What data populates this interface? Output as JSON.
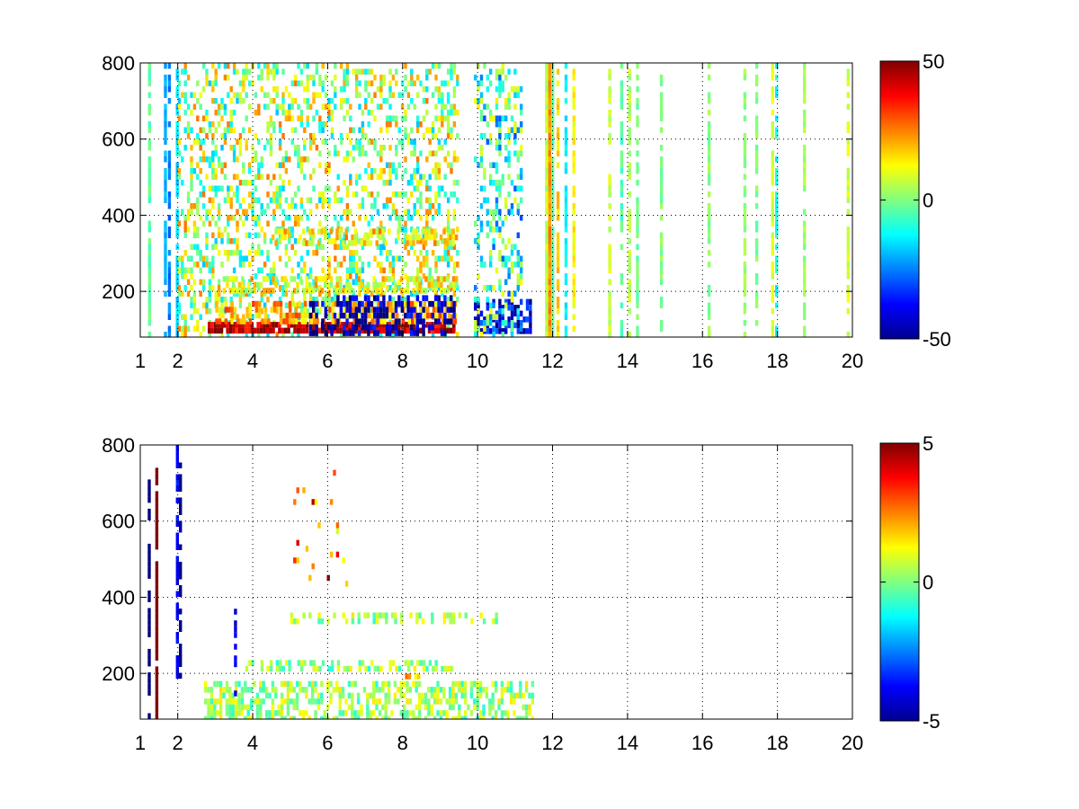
{
  "chart_data": [
    {
      "type": "heatmap",
      "title": "",
      "xlabel": "",
      "ylabel": "",
      "xlim": [
        1,
        20
      ],
      "ylim": [
        80,
        800
      ],
      "x_ticks": [
        1,
        2,
        4,
        6,
        8,
        10,
        12,
        14,
        16,
        18,
        20
      ],
      "x_tick_labels": [
        "1",
        "2",
        "4",
        "6",
        "8",
        "10",
        "12",
        "14",
        "16",
        "18",
        "20"
      ],
      "y_ticks": [
        200,
        400,
        600,
        800
      ],
      "y_tick_labels": [
        "200",
        "400",
        "600",
        "800"
      ],
      "grid": "dotted",
      "colormap": "jet",
      "clim": [
        -50,
        50
      ],
      "colorbar_ticks": [
        50,
        0,
        -50
      ],
      "colorbar_tick_labels": [
        "50",
        "0",
        "-50"
      ],
      "colorbar_position": "right",
      "features": [
        {
          "x_from": 1.1,
          "x_to": 1.95,
          "y_from": 80,
          "y_to": 800,
          "value": -12,
          "kind": "vertical-streaks",
          "density": 0.45
        },
        {
          "x_from": 2,
          "x_to": 9.5,
          "y_from": 80,
          "y_to": 800,
          "value": 4,
          "kind": "speckle",
          "density": 0.35
        },
        {
          "x_from": 2.8,
          "x_to": 9.4,
          "y_from": 90,
          "y_to": 120,
          "value": 45,
          "kind": "band",
          "density": 0.85
        },
        {
          "x_from": 3.0,
          "x_to": 9.4,
          "y_from": 120,
          "y_to": 175,
          "value": 20,
          "kind": "band",
          "density": 0.6
        },
        {
          "x_from": 5.5,
          "x_to": 9.4,
          "y_from": 90,
          "y_to": 190,
          "value": -45,
          "kind": "band",
          "density": 0.45
        },
        {
          "x_from": 3.2,
          "x_to": 9.4,
          "y_from": 200,
          "y_to": 240,
          "value": 12,
          "kind": "band",
          "density": 0.55
        },
        {
          "x_from": 4.5,
          "x_to": 9.4,
          "y_from": 330,
          "y_to": 365,
          "value": 15,
          "kind": "band",
          "density": 0.5
        },
        {
          "x_from": 9.9,
          "x_to": 11.4,
          "y_from": 90,
          "y_to": 180,
          "value": -40,
          "kind": "band",
          "density": 0.7
        },
        {
          "x_from": 9.9,
          "x_to": 11.2,
          "y_from": 80,
          "y_to": 800,
          "value": -8,
          "kind": "speckle",
          "density": 0.35
        },
        {
          "x_from": 11.8,
          "x_to": 12.0,
          "y_from": 80,
          "y_to": 800,
          "value": 10,
          "kind": "column",
          "density": 0.95
        },
        {
          "x_from": 12,
          "x_to": 20,
          "y_from": 80,
          "y_to": 800,
          "value": 0,
          "kind": "sparse-columns",
          "density": 0.25
        }
      ]
    },
    {
      "type": "heatmap",
      "title": "",
      "xlabel": "",
      "ylabel": "",
      "xlim": [
        1,
        20
      ],
      "ylim": [
        80,
        800
      ],
      "x_ticks": [
        1,
        2,
        4,
        6,
        8,
        10,
        12,
        14,
        16,
        18,
        20
      ],
      "x_tick_labels": [
        "1",
        "2",
        "4",
        "6",
        "8",
        "10",
        "12",
        "14",
        "16",
        "18",
        "20"
      ],
      "y_ticks": [
        200,
        400,
        600,
        800
      ],
      "y_tick_labels": [
        "200",
        "400",
        "600",
        "800"
      ],
      "grid": "dotted",
      "colormap": "jet",
      "clim": [
        -5,
        5
      ],
      "colorbar_ticks": [
        5,
        0,
        -5
      ],
      "colorbar_tick_labels": [
        "5",
        "0",
        "-5"
      ],
      "colorbar_position": "right",
      "features": [
        {
          "x_from": 1.2,
          "x_to": 1.25,
          "y_from": 80,
          "y_to": 740,
          "value": -4.5,
          "kind": "column",
          "density": 0.5
        },
        {
          "x_from": 1.4,
          "x_to": 1.45,
          "y_from": 80,
          "y_to": 740,
          "value": 4.8,
          "kind": "column",
          "density": 0.9
        },
        {
          "x_from": 1.95,
          "x_to": 2.05,
          "y_from": 200,
          "y_to": 800,
          "value": -4.5,
          "kind": "column",
          "density": 0.6
        },
        {
          "x_from": 2.7,
          "x_to": 11.5,
          "y_from": 85,
          "y_to": 180,
          "value": 0.3,
          "kind": "band",
          "density": 0.55
        },
        {
          "x_from": 3.8,
          "x_to": 9.3,
          "y_from": 215,
          "y_to": 235,
          "value": 0.3,
          "kind": "band",
          "density": 0.4
        },
        {
          "x_from": 5.0,
          "x_to": 10.5,
          "y_from": 340,
          "y_to": 360,
          "value": 0.3,
          "kind": "band",
          "density": 0.35
        },
        {
          "x_from": 7.9,
          "x_to": 8.4,
          "y_from": 185,
          "y_to": 200,
          "value": 2.0,
          "kind": "band",
          "density": 0.6
        },
        {
          "x_from": 3.5,
          "x_to": 3.55,
          "y_from": 100,
          "y_to": 370,
          "value": -4.5,
          "kind": "column",
          "density": 0.3
        },
        {
          "x_from": 5.0,
          "x_to": 6.7,
          "y_from": 400,
          "y_to": 750,
          "value": 3.0,
          "kind": "speckle",
          "density": 0.04
        }
      ]
    }
  ]
}
